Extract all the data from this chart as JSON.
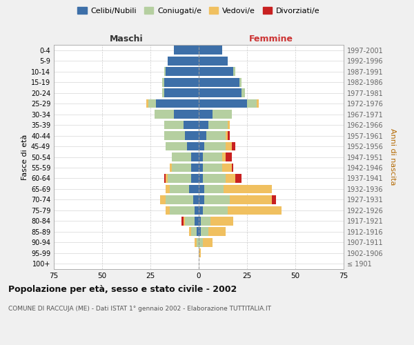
{
  "age_groups": [
    "100+",
    "95-99",
    "90-94",
    "85-89",
    "80-84",
    "75-79",
    "70-74",
    "65-69",
    "60-64",
    "55-59",
    "50-54",
    "45-49",
    "40-44",
    "35-39",
    "30-34",
    "25-29",
    "20-24",
    "15-19",
    "10-14",
    "5-9",
    "0-4"
  ],
  "birth_years": [
    "≤ 1901",
    "1902-1906",
    "1907-1911",
    "1912-1916",
    "1917-1921",
    "1922-1926",
    "1927-1931",
    "1932-1936",
    "1937-1941",
    "1942-1946",
    "1947-1951",
    "1952-1956",
    "1957-1961",
    "1962-1966",
    "1967-1971",
    "1972-1976",
    "1977-1981",
    "1982-1986",
    "1987-1991",
    "1992-1996",
    "1997-2001"
  ],
  "males": {
    "celibi": [
      0,
      0,
      0,
      1,
      2,
      2,
      3,
      5,
      4,
      4,
      4,
      6,
      7,
      8,
      13,
      22,
      18,
      18,
      17,
      16,
      13
    ],
    "coniugati": [
      0,
      0,
      1,
      3,
      5,
      13,
      14,
      10,
      12,
      10,
      10,
      11,
      11,
      10,
      10,
      4,
      1,
      1,
      1,
      0,
      0
    ],
    "vedovi": [
      0,
      0,
      1,
      1,
      1,
      2,
      3,
      2,
      1,
      1,
      0,
      0,
      0,
      0,
      0,
      1,
      0,
      0,
      0,
      0,
      0
    ],
    "divorziati": [
      0,
      0,
      0,
      0,
      1,
      0,
      0,
      0,
      1,
      0,
      0,
      0,
      0,
      0,
      0,
      0,
      0,
      0,
      0,
      0,
      0
    ]
  },
  "females": {
    "nubili": [
      0,
      0,
      0,
      1,
      1,
      2,
      3,
      3,
      2,
      2,
      2,
      3,
      4,
      5,
      7,
      25,
      22,
      21,
      18,
      15,
      12
    ],
    "coniugate": [
      0,
      0,
      2,
      4,
      5,
      13,
      13,
      10,
      12,
      10,
      10,
      11,
      10,
      10,
      10,
      5,
      2,
      1,
      1,
      0,
      0
    ],
    "vedove": [
      0,
      1,
      5,
      9,
      12,
      28,
      22,
      25,
      5,
      5,
      2,
      3,
      1,
      1,
      0,
      1,
      0,
      0,
      0,
      0,
      0
    ],
    "divorziate": [
      0,
      0,
      0,
      0,
      0,
      0,
      2,
      0,
      3,
      1,
      3,
      2,
      1,
      0,
      0,
      0,
      0,
      0,
      0,
      0,
      0
    ]
  },
  "colors": {
    "celibi_nubili": "#3d6fa8",
    "coniugati": "#b5cfa0",
    "vedovi": "#f0c060",
    "divorziati": "#c82020"
  },
  "xlim": 75,
  "title": "Popolazione per età, sesso e stato civile - 2002",
  "subtitle": "COMUNE DI RACCUJA (ME) - Dati ISTAT 1° gennaio 2002 - Elaborazione TUTTITALIA.IT",
  "ylabel_left": "Fasce di età",
  "ylabel_right": "Anni di nascita",
  "xlabel_left": "Maschi",
  "xlabel_right": "Femmine",
  "legend_labels": [
    "Celibi/Nubili",
    "Coniugati/e",
    "Vedovi/e",
    "Divorziati/e"
  ],
  "bg_color": "#f0f0f0",
  "bar_bg_color": "#ffffff"
}
